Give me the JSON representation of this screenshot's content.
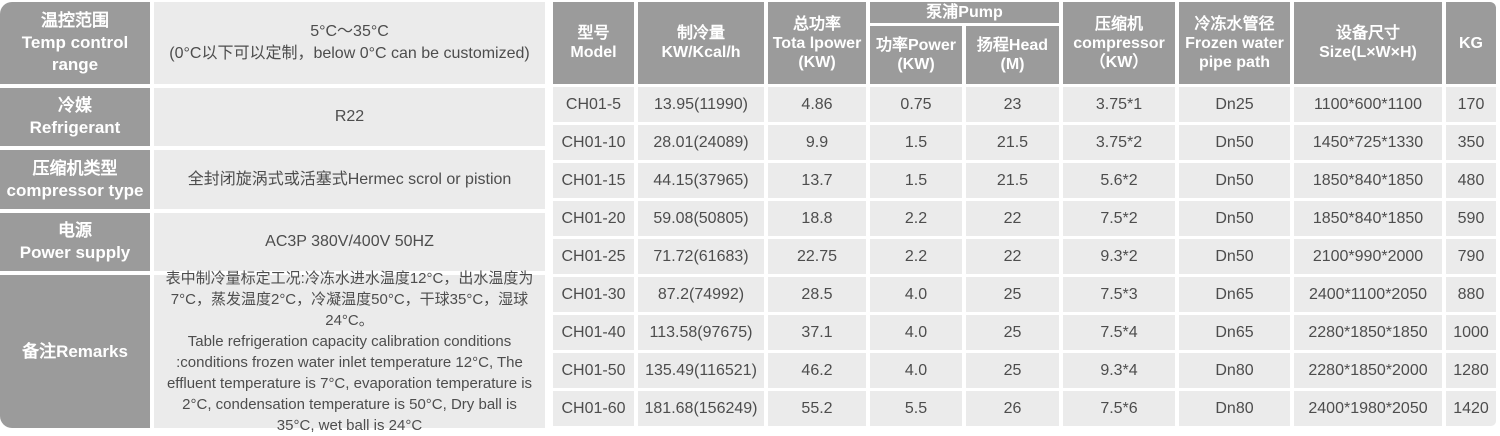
{
  "colors": {
    "header_bg": "#9b9b9b",
    "cell_bg": "#ebebeb",
    "header_text": "#ffffff",
    "cell_text": "#4d4d4d"
  },
  "left_table": {
    "rows": [
      {
        "label_zh": "温控范围",
        "label_en": "Temp control range",
        "value_line1": "5°C～35°C",
        "value_line2": "(0°C以下可以定制，below 0°C can be customized)"
      },
      {
        "label_zh": "冷媒",
        "label_en": "Refrigerant",
        "value_line1": "R22",
        "value_line2": ""
      },
      {
        "label_zh": "压缩机类型",
        "label_en": "compressor type",
        "value_line1": "全封闭旋涡式或活塞式Hermec scrol or pistion",
        "value_line2": ""
      },
      {
        "label_zh": "电源",
        "label_en": "Power supply",
        "value_line1": "AC3P 380V/400V 50HZ",
        "value_line2": ""
      },
      {
        "label_zh": "备注Remarks",
        "label_en": "",
        "value_line1": "表中制冷量标定工况:冷冻水进水温度12°C，出水温度为7°C，蒸发温度2°C，冷凝温度50°C，干球35°C，湿球24°C。",
        "value_line2": "Table refrigeration capacity calibration conditions :conditions frozen water inlet temperature 12°C, The effluent temperature is 7°C, evaporation temperature is 2°C, condensation temperature is 50°C, Dry ball is 35°C, wet ball is 24°C"
      }
    ]
  },
  "spec_table": {
    "headers": {
      "model": [
        "型号",
        "Model"
      ],
      "capacity": [
        "制冷量",
        "KW/Kcal/h"
      ],
      "total_power": [
        "总功率",
        "Tota lpower",
        "(KW)"
      ],
      "pump_group": "泵浦Pump",
      "pump_power": [
        "功率Power",
        "(KW)"
      ],
      "pump_head": [
        "扬程Head",
        "(M)"
      ],
      "compressor": [
        "压缩机",
        "compressor",
        "（KW）"
      ],
      "pipe": [
        "冷冻水管径",
        "Frozen water",
        "pipe path"
      ],
      "size": [
        "设备尺寸",
        "Size(L×W×H)"
      ],
      "weight": [
        "KG"
      ]
    },
    "rows": [
      [
        "CH01-5",
        "13.95(11990)",
        "4.86",
        "0.75",
        "23",
        "3.75*1",
        "Dn25",
        "1100*600*1100",
        "170"
      ],
      [
        "CH01-10",
        "28.01(24089)",
        "9.9",
        "1.5",
        "21.5",
        "3.75*2",
        "Dn50",
        "1450*725*1330",
        "350"
      ],
      [
        "CH01-15",
        "44.15(37965)",
        "13.7",
        "1.5",
        "21.5",
        "5.6*2",
        "Dn50",
        "1850*840*1850",
        "480"
      ],
      [
        "CH01-20",
        "59.08(50805)",
        "18.8",
        "2.2",
        "22",
        "7.5*2",
        "Dn50",
        "1850*840*1850",
        "590"
      ],
      [
        "CH01-25",
        "71.72(61683)",
        "22.75",
        "2.2",
        "22",
        "9.3*2",
        "Dn50",
        "2100*990*2000",
        "790"
      ],
      [
        "CH01-30",
        "87.2(74992)",
        "28.5",
        "4.0",
        "25",
        "7.5*3",
        "Dn65",
        "2400*1100*2050",
        "880"
      ],
      [
        "CH01-40",
        "113.58(97675)",
        "37.1",
        "4.0",
        "25",
        "7.5*4",
        "Dn65",
        "2280*1850*1850",
        "1000"
      ],
      [
        "CH01-50",
        "135.49(116521)",
        "46.2",
        "4.0",
        "25",
        "9.3*4",
        "Dn80",
        "2280*1850*2000",
        "1280"
      ],
      [
        "CH01-60",
        "181.68(156249)",
        "55.2",
        "5.5",
        "26",
        "7.5*6",
        "Dn80",
        "2400*1980*2050",
        "1420"
      ]
    ]
  }
}
